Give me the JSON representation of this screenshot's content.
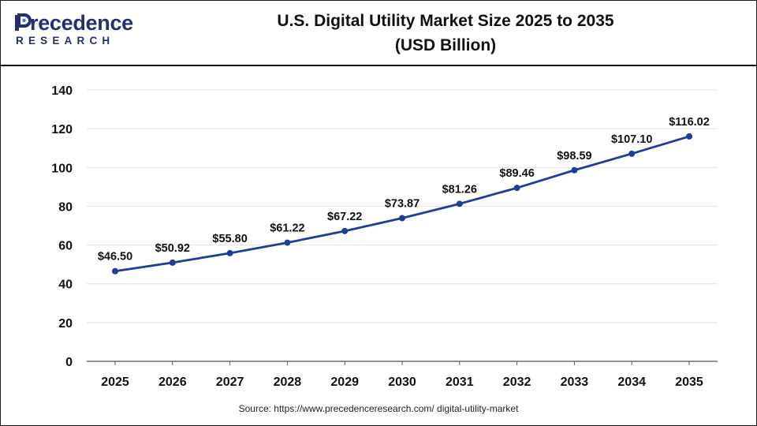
{
  "logo": {
    "name_top": "recedence",
    "name_bottom": "RESEARCH",
    "accent_color": "#24306e"
  },
  "chart_data": {
    "type": "line",
    "title": "U.S. Digital Utility Market Size 2025 to 2035",
    "subtitle": "(USD Billion)",
    "xlabel": "",
    "ylabel": "",
    "categories": [
      "2025",
      "2026",
      "2027",
      "2028",
      "2029",
      "2030",
      "2031",
      "2032",
      "2033",
      "2034",
      "2035"
    ],
    "values": [
      46.5,
      50.92,
      55.8,
      61.22,
      67.22,
      73.87,
      81.26,
      89.46,
      98.59,
      107.1,
      116.02
    ],
    "data_labels": [
      "$46.50",
      "$50.92",
      "$55.80",
      "$61.22",
      "$67.22",
      "$73.87",
      "$81.26",
      "$89.46",
      "$98.59",
      "$107.10",
      "$116.02"
    ],
    "ylim": [
      0,
      140
    ],
    "yticks": [
      "0",
      "20",
      "40",
      "60",
      "80",
      "100",
      "120",
      "140"
    ],
    "grid": true,
    "legend": "none",
    "line_color": "#1f3d99"
  },
  "source": "Source: https://www.precedenceresearch.com/ digital-utility-market"
}
